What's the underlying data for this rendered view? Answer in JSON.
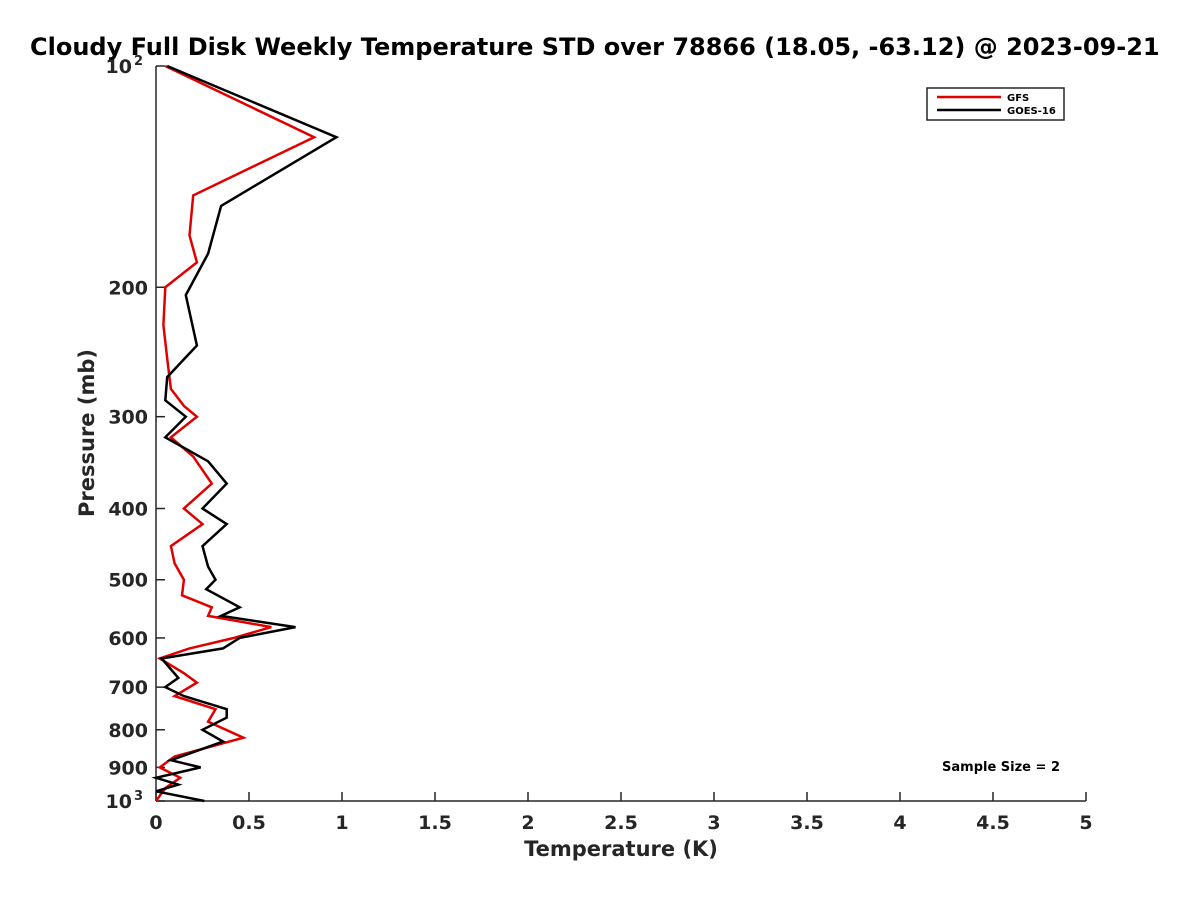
{
  "chart_data": {
    "type": "line",
    "title": "Cloudy Full Disk Weekly Temperature STD over 78866 (18.05, -63.12) @ 2023-09-21",
    "xlabel": "Temperature (K)",
    "ylabel": "Pressure (mb)",
    "xlim": [
      0,
      5
    ],
    "ylim": [
      100,
      1000
    ],
    "y_scale": "log",
    "y_reversed": true,
    "x_ticks": [
      "0",
      "0.5",
      "1",
      "1.5",
      "2",
      "2.5",
      "3",
      "3.5",
      "4",
      "4.5",
      "5"
    ],
    "y_ticks": [
      {
        "value": 100,
        "base": "10",
        "exp": "2"
      },
      {
        "value": 200,
        "label": "200"
      },
      {
        "value": 300,
        "label": "300"
      },
      {
        "value": 400,
        "label": "400"
      },
      {
        "value": 500,
        "label": "500"
      },
      {
        "value": 600,
        "label": "600"
      },
      {
        "value": 700,
        "label": "700"
      },
      {
        "value": 800,
        "label": "800"
      },
      {
        "value": 900,
        "label": "900"
      },
      {
        "value": 1000,
        "base": "10",
        "exp": "3"
      }
    ],
    "legend_position": "top-right",
    "annotation": "Sample Size = 2",
    "grid": false,
    "series": [
      {
        "name": "GFS",
        "color": "#e00000",
        "points": [
          [
            0.05,
            100
          ],
          [
            0.85,
            125
          ],
          [
            0.2,
            150
          ],
          [
            0.18,
            170
          ],
          [
            0.22,
            185
          ],
          [
            0.05,
            200
          ],
          [
            0.04,
            225
          ],
          [
            0.06,
            250
          ],
          [
            0.08,
            275
          ],
          [
            0.15,
            290
          ],
          [
            0.22,
            300
          ],
          [
            0.08,
            320
          ],
          [
            0.2,
            340
          ],
          [
            0.3,
            370
          ],
          [
            0.15,
            400
          ],
          [
            0.25,
            420
          ],
          [
            0.08,
            450
          ],
          [
            0.1,
            475
          ],
          [
            0.15,
            500
          ],
          [
            0.14,
            525
          ],
          [
            0.3,
            545
          ],
          [
            0.28,
            560
          ],
          [
            0.62,
            580
          ],
          [
            0.42,
            600
          ],
          [
            0.18,
            620
          ],
          [
            0.02,
            640
          ],
          [
            0.15,
            670
          ],
          [
            0.22,
            690
          ],
          [
            0.1,
            720
          ],
          [
            0.32,
            750
          ],
          [
            0.28,
            780
          ],
          [
            0.47,
            820
          ],
          [
            0.1,
            870
          ],
          [
            0.02,
            900
          ],
          [
            0.13,
            930
          ],
          [
            0.05,
            960
          ],
          [
            0.0,
            1000
          ]
        ]
      },
      {
        "name": "GOES-16",
        "color": "#000000",
        "points": [
          [
            0.06,
            100
          ],
          [
            0.97,
            125
          ],
          [
            0.35,
            155
          ],
          [
            0.28,
            180
          ],
          [
            0.16,
            205
          ],
          [
            0.22,
            240
          ],
          [
            0.06,
            265
          ],
          [
            0.05,
            285
          ],
          [
            0.16,
            300
          ],
          [
            0.05,
            320
          ],
          [
            0.28,
            345
          ],
          [
            0.38,
            370
          ],
          [
            0.25,
            400
          ],
          [
            0.38,
            420
          ],
          [
            0.25,
            450
          ],
          [
            0.28,
            480
          ],
          [
            0.32,
            500
          ],
          [
            0.27,
            515
          ],
          [
            0.45,
            545
          ],
          [
            0.35,
            560
          ],
          [
            0.75,
            580
          ],
          [
            0.45,
            600
          ],
          [
            0.36,
            620
          ],
          [
            0.03,
            640
          ],
          [
            0.12,
            680
          ],
          [
            0.05,
            700
          ],
          [
            0.15,
            720
          ],
          [
            0.38,
            750
          ],
          [
            0.38,
            770
          ],
          [
            0.25,
            800
          ],
          [
            0.36,
            830
          ],
          [
            0.08,
            880
          ],
          [
            0.24,
            900
          ],
          [
            0.0,
            930
          ],
          [
            0.12,
            950
          ],
          [
            0.0,
            970
          ],
          [
            0.26,
            1000
          ]
        ]
      }
    ]
  }
}
